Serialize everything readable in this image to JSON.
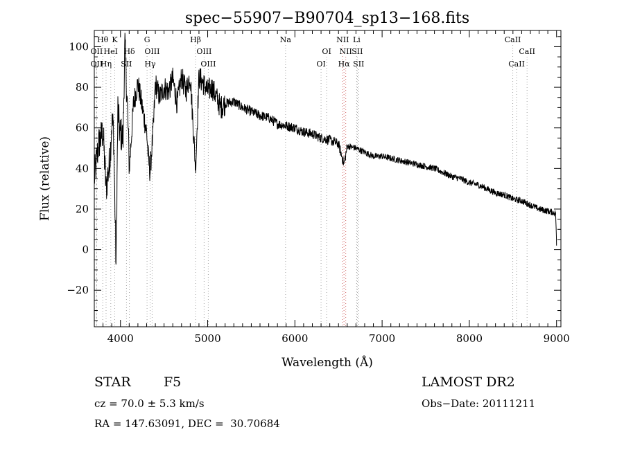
{
  "chart_data": {
    "type": "line",
    "title": "spec−55907−B90704_sp13−168.fits",
    "xlabel": "Wavelength (Å)",
    "ylabel": "Flux (relative)",
    "xlim": [
      3700,
      9050
    ],
    "ylim": [
      -38,
      108
    ],
    "xticks": [
      4000,
      5000,
      6000,
      7000,
      8000,
      9000
    ],
    "yticks": [
      -20,
      0,
      20,
      40,
      60,
      80,
      100
    ],
    "tick_labels_x": [
      "4000",
      "5000",
      "6000",
      "7000",
      "8000",
      "9000"
    ],
    "tick_labels_y": [
      "−20",
      "0",
      "20",
      "40",
      "60",
      "80",
      "100"
    ],
    "grid": false,
    "series": [
      {
        "x": [
          3700,
          3750,
          3800,
          3835,
          3880,
          3900,
          3920,
          3950,
          3970,
          3990,
          4030,
          4050,
          4080,
          4102,
          4150,
          4200,
          4250,
          4300,
          4320,
          4340,
          4380,
          4400,
          4450,
          4500,
          4550,
          4600,
          4650,
          4700,
          4750,
          4800,
          4861,
          4900,
          4950,
          5000,
          5050,
          5100,
          5150,
          5200,
          5300,
          5400,
          5500,
          5600,
          5700,
          5800,
          5900,
          6000,
          6100,
          6200,
          6300,
          6400,
          6500,
          6563,
          6600,
          6700,
          6800,
          6900,
          7000,
          7100,
          7200,
          7300,
          7400,
          7500,
          7600,
          7700,
          7800,
          7900,
          8000,
          8100,
          8200,
          8300,
          8400,
          8500,
          8600,
          8700,
          8800,
          8900,
          8990,
          9000
        ],
        "y": [
          35,
          52,
          58,
          30,
          45,
          62,
          60,
          -10,
          70,
          58,
          55,
          102,
          70,
          40,
          72,
          82,
          70,
          58,
          45,
          38,
          62,
          82,
          75,
          80,
          78,
          84,
          72,
          85,
          78,
          86,
          40,
          85,
          82,
          78,
          80,
          75,
          70,
          72,
          73,
          70,
          68,
          66,
          65,
          62,
          61,
          60,
          58,
          57,
          55,
          54,
          52,
          42,
          51,
          50,
          48,
          46,
          46,
          45,
          44,
          43,
          42,
          41,
          40,
          38,
          36,
          35,
          33,
          32,
          30,
          28,
          27,
          25,
          24,
          22,
          20,
          19,
          18,
          2
        ]
      }
    ],
    "lines": [
      {
        "label": "Hθ",
        "x": 3797,
        "row": 1
      },
      {
        "label": "K",
        "x": 3934,
        "row": 1
      },
      {
        "label": "G",
        "x": 4305,
        "row": 1
      },
      {
        "label": "Hβ",
        "x": 4861,
        "row": 1
      },
      {
        "label": "Na",
        "x": 5893,
        "row": 1
      },
      {
        "label": "NII",
        "x": 6548,
        "row": 1
      },
      {
        "label": "Li",
        "x": 6708,
        "row": 1
      },
      {
        "label": "CaII",
        "x": 8498,
        "row": 1
      },
      {
        "label": "OII",
        "x": 3727,
        "row": 2
      },
      {
        "label": "HeI",
        "x": 3889,
        "row": 2
      },
      {
        "label": "Hδ",
        "x": 4102,
        "row": 2
      },
      {
        "label": "OIII",
        "x": 4363,
        "row": 2
      },
      {
        "label": "OIII",
        "x": 4959,
        "row": 2
      },
      {
        "label": "OI",
        "x": 6364,
        "row": 2
      },
      {
        "label": "NII",
        "x": 6583,
        "row": 2
      },
      {
        "label": "SII",
        "x": 6716,
        "row": 2
      },
      {
        "label": "CaII",
        "x": 8662,
        "row": 2
      },
      {
        "label": "OII",
        "x": 3727,
        "row": 3
      },
      {
        "label": "Hη",
        "x": 3835,
        "row": 3
      },
      {
        "label": "SII",
        "x": 4069,
        "row": 3
      },
      {
        "label": "Hγ",
        "x": 4340,
        "row": 3
      },
      {
        "label": "OIII",
        "x": 5007,
        "row": 3
      },
      {
        "label": "OI",
        "x": 6300,
        "row": 3
      },
      {
        "label": "Hα",
        "x": 6563,
        "row": 3
      },
      {
        "label": "SII",
        "x": 6731,
        "row": 3
      },
      {
        "label": "CaII",
        "x": 8542,
        "row": 3
      }
    ]
  },
  "info": {
    "object_class": "STAR",
    "subclass": "F5",
    "survey": "LAMOST DR2",
    "cz": "cz = 70.0 ± 5.3 km/s",
    "obs_date": "Obs−Date: 20111211",
    "coords": "RA = 147.63091, DEC =  30.70684"
  }
}
